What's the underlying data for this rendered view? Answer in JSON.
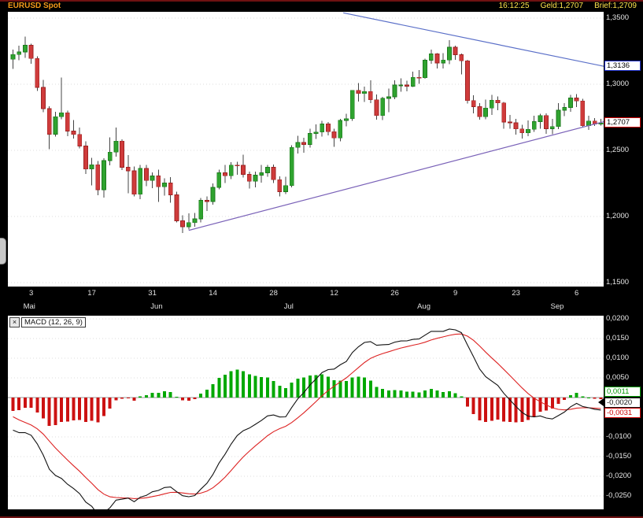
{
  "header": {
    "title": "EURUSD Spot",
    "time": "16:12:25",
    "geld": "Geld:1,2707",
    "brief": "Brief:1,2709"
  },
  "macd_header": {
    "label": "MACD (12, 26, 9)",
    "close_glyph": "×"
  },
  "colors": {
    "up": "#2fa32f",
    "up_border": "#1d7a1d",
    "down": "#cf3b3b",
    "down_border": "#9e2323",
    "wick": "#444444",
    "macd_line": "#111111",
    "signal_line": "#dd2222",
    "hist_up": "#00a800",
    "hist_down": "#cc1111",
    "grid": "#dcdcdc",
    "zero_line": "#9a9a9a"
  },
  "chart_data": [
    {
      "type": "candlestick",
      "title": "EURUSD Spot",
      "ylim": [
        1.147,
        1.3548
      ],
      "y_ticks": [
        {
          "label": "1,3500",
          "value": 1.35
        },
        {
          "label": "1,3000",
          "value": 1.3
        },
        {
          "label": "1,2500",
          "value": 1.25
        },
        {
          "label": "1,2000",
          "value": 1.2
        },
        {
          "label": "1,1500",
          "value": 1.15
        }
      ],
      "x_ticks": [
        {
          "label": "3",
          "i": 3
        },
        {
          "label": "17",
          "i": 13
        },
        {
          "label": "31",
          "i": 23
        },
        {
          "label": "14",
          "i": 33
        },
        {
          "label": "28",
          "i": 43
        },
        {
          "label": "12",
          "i": 53
        },
        {
          "label": "26",
          "i": 63
        },
        {
          "label": "9",
          "i": 73
        },
        {
          "label": "23",
          "i": 83
        },
        {
          "label": "6",
          "i": 93
        }
      ],
      "months": [
        {
          "label": "Mai",
          "i": 3
        },
        {
          "label": "Jun",
          "i": 24
        },
        {
          "label": "Jul",
          "i": 46
        },
        {
          "label": "Aug",
          "i": 68
        },
        {
          "label": "Sep",
          "i": 90
        }
      ],
      "markers": [
        {
          "label": "1,3136",
          "value": 1.3136,
          "border": "#2233cc",
          "role": "trendline-value"
        },
        {
          "label": "1,2707",
          "value": 1.2707,
          "border": "#cc0000",
          "role": "last-price"
        }
      ],
      "trendlines": [
        {
          "i1": 54.5,
          "p1": 1.354,
          "i2": 97.5,
          "p2": 1.3136,
          "color": "#5a6fc8",
          "name": "trendline-descending"
        },
        {
          "i1": 29,
          "p1": 1.1895,
          "i2": 97.5,
          "p2": 1.2717,
          "color": "#7a62b8",
          "name": "trendline-ascending"
        }
      ],
      "ohlc": [
        [
          1.319,
          1.3262,
          1.3115,
          1.3225
        ],
        [
          1.3225,
          1.3293,
          1.3182,
          1.3245
        ],
        [
          1.3245,
          1.3359,
          1.3201,
          1.3295
        ],
        [
          1.3295,
          1.3308,
          1.3155,
          1.3195
        ],
        [
          1.3195,
          1.3212,
          1.2951,
          1.2977
        ],
        [
          1.2977,
          1.3033,
          1.2788,
          1.2815
        ],
        [
          1.2815,
          1.2834,
          1.251,
          1.2622
        ],
        [
          1.2622,
          1.2791,
          1.2605,
          1.2755
        ],
        [
          1.2755,
          1.305,
          1.2736,
          1.2785
        ],
        [
          1.2785,
          1.28,
          1.2608,
          1.2646
        ],
        [
          1.2646,
          1.273,
          1.2588,
          1.2621
        ],
        [
          1.2621,
          1.2672,
          1.2516,
          1.2533
        ],
        [
          1.2533,
          1.257,
          1.2322,
          1.2358
        ],
        [
          1.2358,
          1.2444,
          1.2234,
          1.2392
        ],
        [
          1.2392,
          1.242,
          1.2162,
          1.2203
        ],
        [
          1.2203,
          1.2442,
          1.2144,
          1.2423
        ],
        [
          1.2423,
          1.2598,
          1.2388,
          1.2487
        ],
        [
          1.2487,
          1.2672,
          1.2452,
          1.257
        ],
        [
          1.257,
          1.2583,
          1.2351,
          1.2372
        ],
        [
          1.2372,
          1.2465,
          1.2177,
          1.2346
        ],
        [
          1.2346,
          1.2378,
          1.2152,
          1.2168
        ],
        [
          1.2168,
          1.239,
          1.213,
          1.2363
        ],
        [
          1.2363,
          1.2389,
          1.223,
          1.2272
        ],
        [
          1.2272,
          1.2332,
          1.2215,
          1.2307
        ],
        [
          1.2307,
          1.2354,
          1.2111,
          1.2225
        ],
        [
          1.2225,
          1.2288,
          1.2158,
          1.2253
        ],
        [
          1.2253,
          1.2298,
          1.2105,
          1.2163
        ],
        [
          1.2163,
          1.2186,
          1.1955,
          1.1967
        ],
        [
          1.1967,
          1.201,
          1.1876,
          1.1922
        ],
        [
          1.1922,
          1.2025,
          1.1902,
          1.1954
        ],
        [
          1.1954,
          1.2028,
          1.1923,
          1.1982
        ],
        [
          1.1982,
          1.214,
          1.1956,
          1.2122
        ],
        [
          1.2122,
          1.2151,
          1.2041,
          1.2113
        ],
        [
          1.2113,
          1.2251,
          1.2089,
          1.222
        ],
        [
          1.222,
          1.2353,
          1.2205,
          1.2331
        ],
        [
          1.2331,
          1.239,
          1.2254,
          1.2308
        ],
        [
          1.2308,
          1.2412,
          1.2282,
          1.2389
        ],
        [
          1.2389,
          1.2415,
          1.2315,
          1.2387
        ],
        [
          1.2387,
          1.2467,
          1.2295,
          1.2318
        ],
        [
          1.2318,
          1.2338,
          1.2212,
          1.2267
        ],
        [
          1.2267,
          1.234,
          1.2221,
          1.2312
        ],
        [
          1.2312,
          1.2389,
          1.2256,
          1.2331
        ],
        [
          1.2331,
          1.2391,
          1.2302,
          1.2372
        ],
        [
          1.2372,
          1.2392,
          1.2254,
          1.2279
        ],
        [
          1.2279,
          1.2305,
          1.2152,
          1.2188
        ],
        [
          1.2188,
          1.23,
          1.217,
          1.2234
        ],
        [
          1.2234,
          1.2538,
          1.222,
          1.2523
        ],
        [
          1.2523,
          1.2611,
          1.2476,
          1.256
        ],
        [
          1.256,
          1.2594,
          1.2481,
          1.2544
        ],
        [
          1.2544,
          1.2663,
          1.252,
          1.2628
        ],
        [
          1.2628,
          1.2697,
          1.2586,
          1.2639
        ],
        [
          1.2639,
          1.2722,
          1.2603,
          1.27
        ],
        [
          1.27,
          1.2714,
          1.2612,
          1.2641
        ],
        [
          1.2641,
          1.2665,
          1.2527,
          1.2594
        ],
        [
          1.2594,
          1.2738,
          1.257,
          1.2727
        ],
        [
          1.2727,
          1.2777,
          1.2683,
          1.274
        ],
        [
          1.274,
          1.2955,
          1.2722,
          1.2954
        ],
        [
          1.2954,
          1.3008,
          1.287,
          1.293
        ],
        [
          1.293,
          1.2982,
          1.2867,
          1.2945
        ],
        [
          1.2945,
          1.3029,
          1.2857,
          1.2882
        ],
        [
          1.2882,
          1.2922,
          1.2733,
          1.2763
        ],
        [
          1.2763,
          1.2905,
          1.273,
          1.2893
        ],
        [
          1.2893,
          1.2967,
          1.279,
          1.2905
        ],
        [
          1.2905,
          1.3029,
          1.2886,
          1.2994
        ],
        [
          1.2994,
          1.3046,
          1.2943,
          1.2994
        ],
        [
          1.2994,
          1.3027,
          1.2948,
          1.2986
        ],
        [
          1.2986,
          1.3094,
          1.298,
          1.3053
        ],
        [
          1.3053,
          1.3107,
          1.3004,
          1.3049
        ],
        [
          1.3049,
          1.3194,
          1.3042,
          1.3182
        ],
        [
          1.3182,
          1.3262,
          1.3156,
          1.323
        ],
        [
          1.323,
          1.3236,
          1.3119,
          1.3161
        ],
        [
          1.3161,
          1.3234,
          1.3118,
          1.3184
        ],
        [
          1.3184,
          1.3334,
          1.3152,
          1.328
        ],
        [
          1.328,
          1.3293,
          1.3184,
          1.3224
        ],
        [
          1.3224,
          1.3231,
          1.3075,
          1.3178
        ],
        [
          1.3178,
          1.3185,
          1.2853,
          1.2876
        ],
        [
          1.2876,
          1.2916,
          1.2781,
          1.283
        ],
        [
          1.283,
          1.2857,
          1.2732,
          1.2754
        ],
        [
          1.2754,
          1.2884,
          1.2734,
          1.282
        ],
        [
          1.282,
          1.292,
          1.2768,
          1.2879
        ],
        [
          1.2879,
          1.2908,
          1.2803,
          1.2859
        ],
        [
          1.2859,
          1.2865,
          1.2665,
          1.2715
        ],
        [
          1.2715,
          1.2767,
          1.2664,
          1.2709
        ],
        [
          1.2709,
          1.2737,
          1.262,
          1.2663
        ],
        [
          1.2663,
          1.2695,
          1.2588,
          1.2632
        ],
        [
          1.2632,
          1.2726,
          1.2606,
          1.2659
        ],
        [
          1.2659,
          1.2762,
          1.2639,
          1.2718
        ],
        [
          1.2718,
          1.2778,
          1.2664,
          1.2763
        ],
        [
          1.2763,
          1.2779,
          1.2625,
          1.2664
        ],
        [
          1.2664,
          1.2739,
          1.2622,
          1.268
        ],
        [
          1.268,
          1.2858,
          1.2662,
          1.2803
        ],
        [
          1.2803,
          1.2856,
          1.276,
          1.2824
        ],
        [
          1.2824,
          1.2919,
          1.2792,
          1.2896
        ],
        [
          1.2896,
          1.2925,
          1.2827,
          1.2874
        ],
        [
          1.2874,
          1.289,
          1.2674,
          1.2686
        ],
        [
          1.2686,
          1.2762,
          1.2655,
          1.2722
        ],
        [
          1.2722,
          1.2744,
          1.2686,
          1.27
        ],
        [
          1.27,
          1.2738,
          1.2688,
          1.2707
        ]
      ]
    },
    {
      "type": "macd",
      "label": "MACD (12, 26, 9)",
      "fast": 12,
      "slow": 26,
      "signal_period": 9,
      "ylim": [
        -0.0284,
        0.0208
      ],
      "warmup_closes": [
        1.3605,
        1.358,
        1.356,
        1.3585,
        1.354,
        1.35,
        1.3465,
        1.343,
        1.3395,
        1.335,
        1.331,
        1.327
      ],
      "y_ticks": [
        {
          "label": "0,0200",
          "value": 0.02
        },
        {
          "label": "0,0150",
          "value": 0.015
        },
        {
          "label": "0,0100",
          "value": 0.01
        },
        {
          "label": "0,0050",
          "value": 0.005
        },
        {
          "label": "-0,0100",
          "value": -0.01
        },
        {
          "label": "-0,0150",
          "value": -0.015
        },
        {
          "label": "-0,0200",
          "value": -0.02
        },
        {
          "label": "-0,0250",
          "value": -0.025
        }
      ],
      "value_boxes": [
        {
          "label": "0,0011",
          "value": 0.0011,
          "color": "#009900",
          "role": "histogram"
        },
        {
          "label": "-0,0020",
          "value": -0.002,
          "color": "#111111",
          "role": "macd"
        },
        {
          "label": "-0,0031",
          "value": -0.0031,
          "color": "#cc0000",
          "role": "signal"
        }
      ]
    }
  ]
}
